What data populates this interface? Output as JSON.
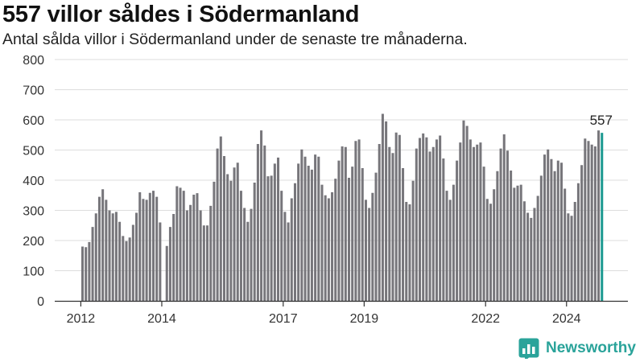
{
  "title": "557 villor såldes i Södermanland",
  "subtitle": "Antal sålda villor i Södermanland under de senaste tre månaderna.",
  "brand": {
    "name": "Newsworthy",
    "color": "#2aa39a"
  },
  "colors": {
    "bar": "#77767b",
    "highlight": "#1b9990",
    "grid": "#dddddd",
    "axis": "#333333"
  },
  "chart_data": {
    "type": "bar",
    "title": "557 villor såldes i Södermanland",
    "subtitle": "Antal sålda villor i Södermanland under de senaste tre månaderna.",
    "xlabel": "",
    "ylabel": "",
    "ylim": [
      0,
      800
    ],
    "yticks": [
      0,
      100,
      200,
      300,
      400,
      500,
      600,
      700,
      800
    ],
    "xticks": [
      "2012",
      "2014",
      "2017",
      "2019",
      "2022",
      "2024"
    ],
    "grid": true,
    "start": "2012-01",
    "end": "2024-12",
    "values": [
      180,
      178,
      195,
      245,
      290,
      345,
      370,
      335,
      300,
      290,
      295,
      262,
      215,
      198,
      210,
      252,
      292,
      360,
      338,
      335,
      358,
      365,
      345,
      260,
      null,
      182,
      245,
      288,
      380,
      375,
      365,
      300,
      318,
      352,
      357,
      300,
      250,
      250,
      315,
      395,
      505,
      545,
      480,
      420,
      398,
      442,
      458,
      365,
      308,
      262,
      305,
      392,
      520,
      565,
      515,
      413,
      415,
      455,
      475,
      365,
      295,
      260,
      340,
      390,
      455,
      502,
      478,
      448,
      435,
      485,
      478,
      385,
      350,
      340,
      360,
      405,
      465,
      512,
      510,
      408,
      445,
      530,
      535,
      440,
      335,
      308,
      358,
      425,
      520,
      620,
      595,
      510,
      490,
      558,
      550,
      440,
      328,
      320,
      398,
      505,
      540,
      555,
      542,
      495,
      510,
      535,
      548,
      472,
      365,
      335,
      385,
      465,
      525,
      598,
      580,
      535,
      510,
      518,
      525,
      445,
      338,
      322,
      370,
      430,
      505,
      552,
      498,
      432,
      375,
      382,
      385,
      330,
      292,
      275,
      308,
      348,
      415,
      485,
      502,
      470,
      430,
      465,
      458,
      372,
      290,
      282,
      328,
      390,
      450,
      538,
      530,
      518,
      512,
      565,
      557
    ],
    "highlight": {
      "label": "557",
      "value": 557
    }
  }
}
